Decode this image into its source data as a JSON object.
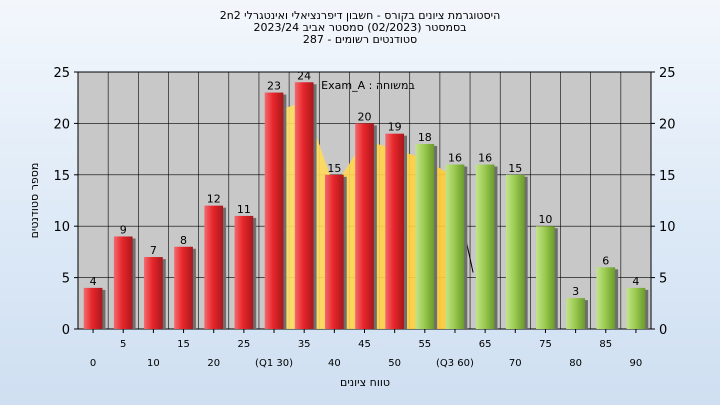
{
  "header": {
    "line1": "היסטוגרמת ציונים בקורס - חשבון דיפרנציאלי ואינטגרלי 2n2",
    "line2": "בסמסטר  (02/2023)  סמסטר אביב 2023/24",
    "line3": "סטודנטים רשומים - 287"
  },
  "chart_data": {
    "type": "bar",
    "xlabel": "טווח ציונים",
    "ylabel": "מספר סטודנטים",
    "ylim": [
      0,
      25
    ],
    "yticks": [
      0,
      5,
      10,
      15,
      20,
      25
    ],
    "grid": true,
    "categories": [
      "0",
      "5",
      "10",
      "15",
      "20",
      "25",
      "30",
      "35",
      "40",
      "45",
      "50",
      "55",
      "60",
      "65",
      "70",
      "75",
      "80",
      "85",
      "90"
    ],
    "x_tick_labels": [
      "0",
      "5",
      "10",
      "15",
      "20",
      "25",
      "(Q1 30)",
      "35",
      "40",
      "45",
      "50",
      "55",
      "(Q3 60)",
      "65",
      "70",
      "75",
      "80",
      "85",
      "90"
    ],
    "values": [
      4,
      9,
      7,
      8,
      12,
      11,
      23,
      24,
      15,
      20,
      19,
      18,
      16,
      16,
      15,
      10,
      3,
      6,
      4
    ],
    "bar_colors": [
      "red",
      "red",
      "red",
      "red",
      "red",
      "red",
      "red",
      "red",
      "red",
      "red",
      "red",
      "green",
      "green",
      "green",
      "green",
      "green",
      "green",
      "green",
      "green"
    ],
    "colors": {
      "red": "#e8262b",
      "green": "#9ccc52",
      "area": "#ffd54a",
      "plot_bg": "#c8c8c8"
    },
    "annotation": "Exam_A : במשוחה"
  }
}
